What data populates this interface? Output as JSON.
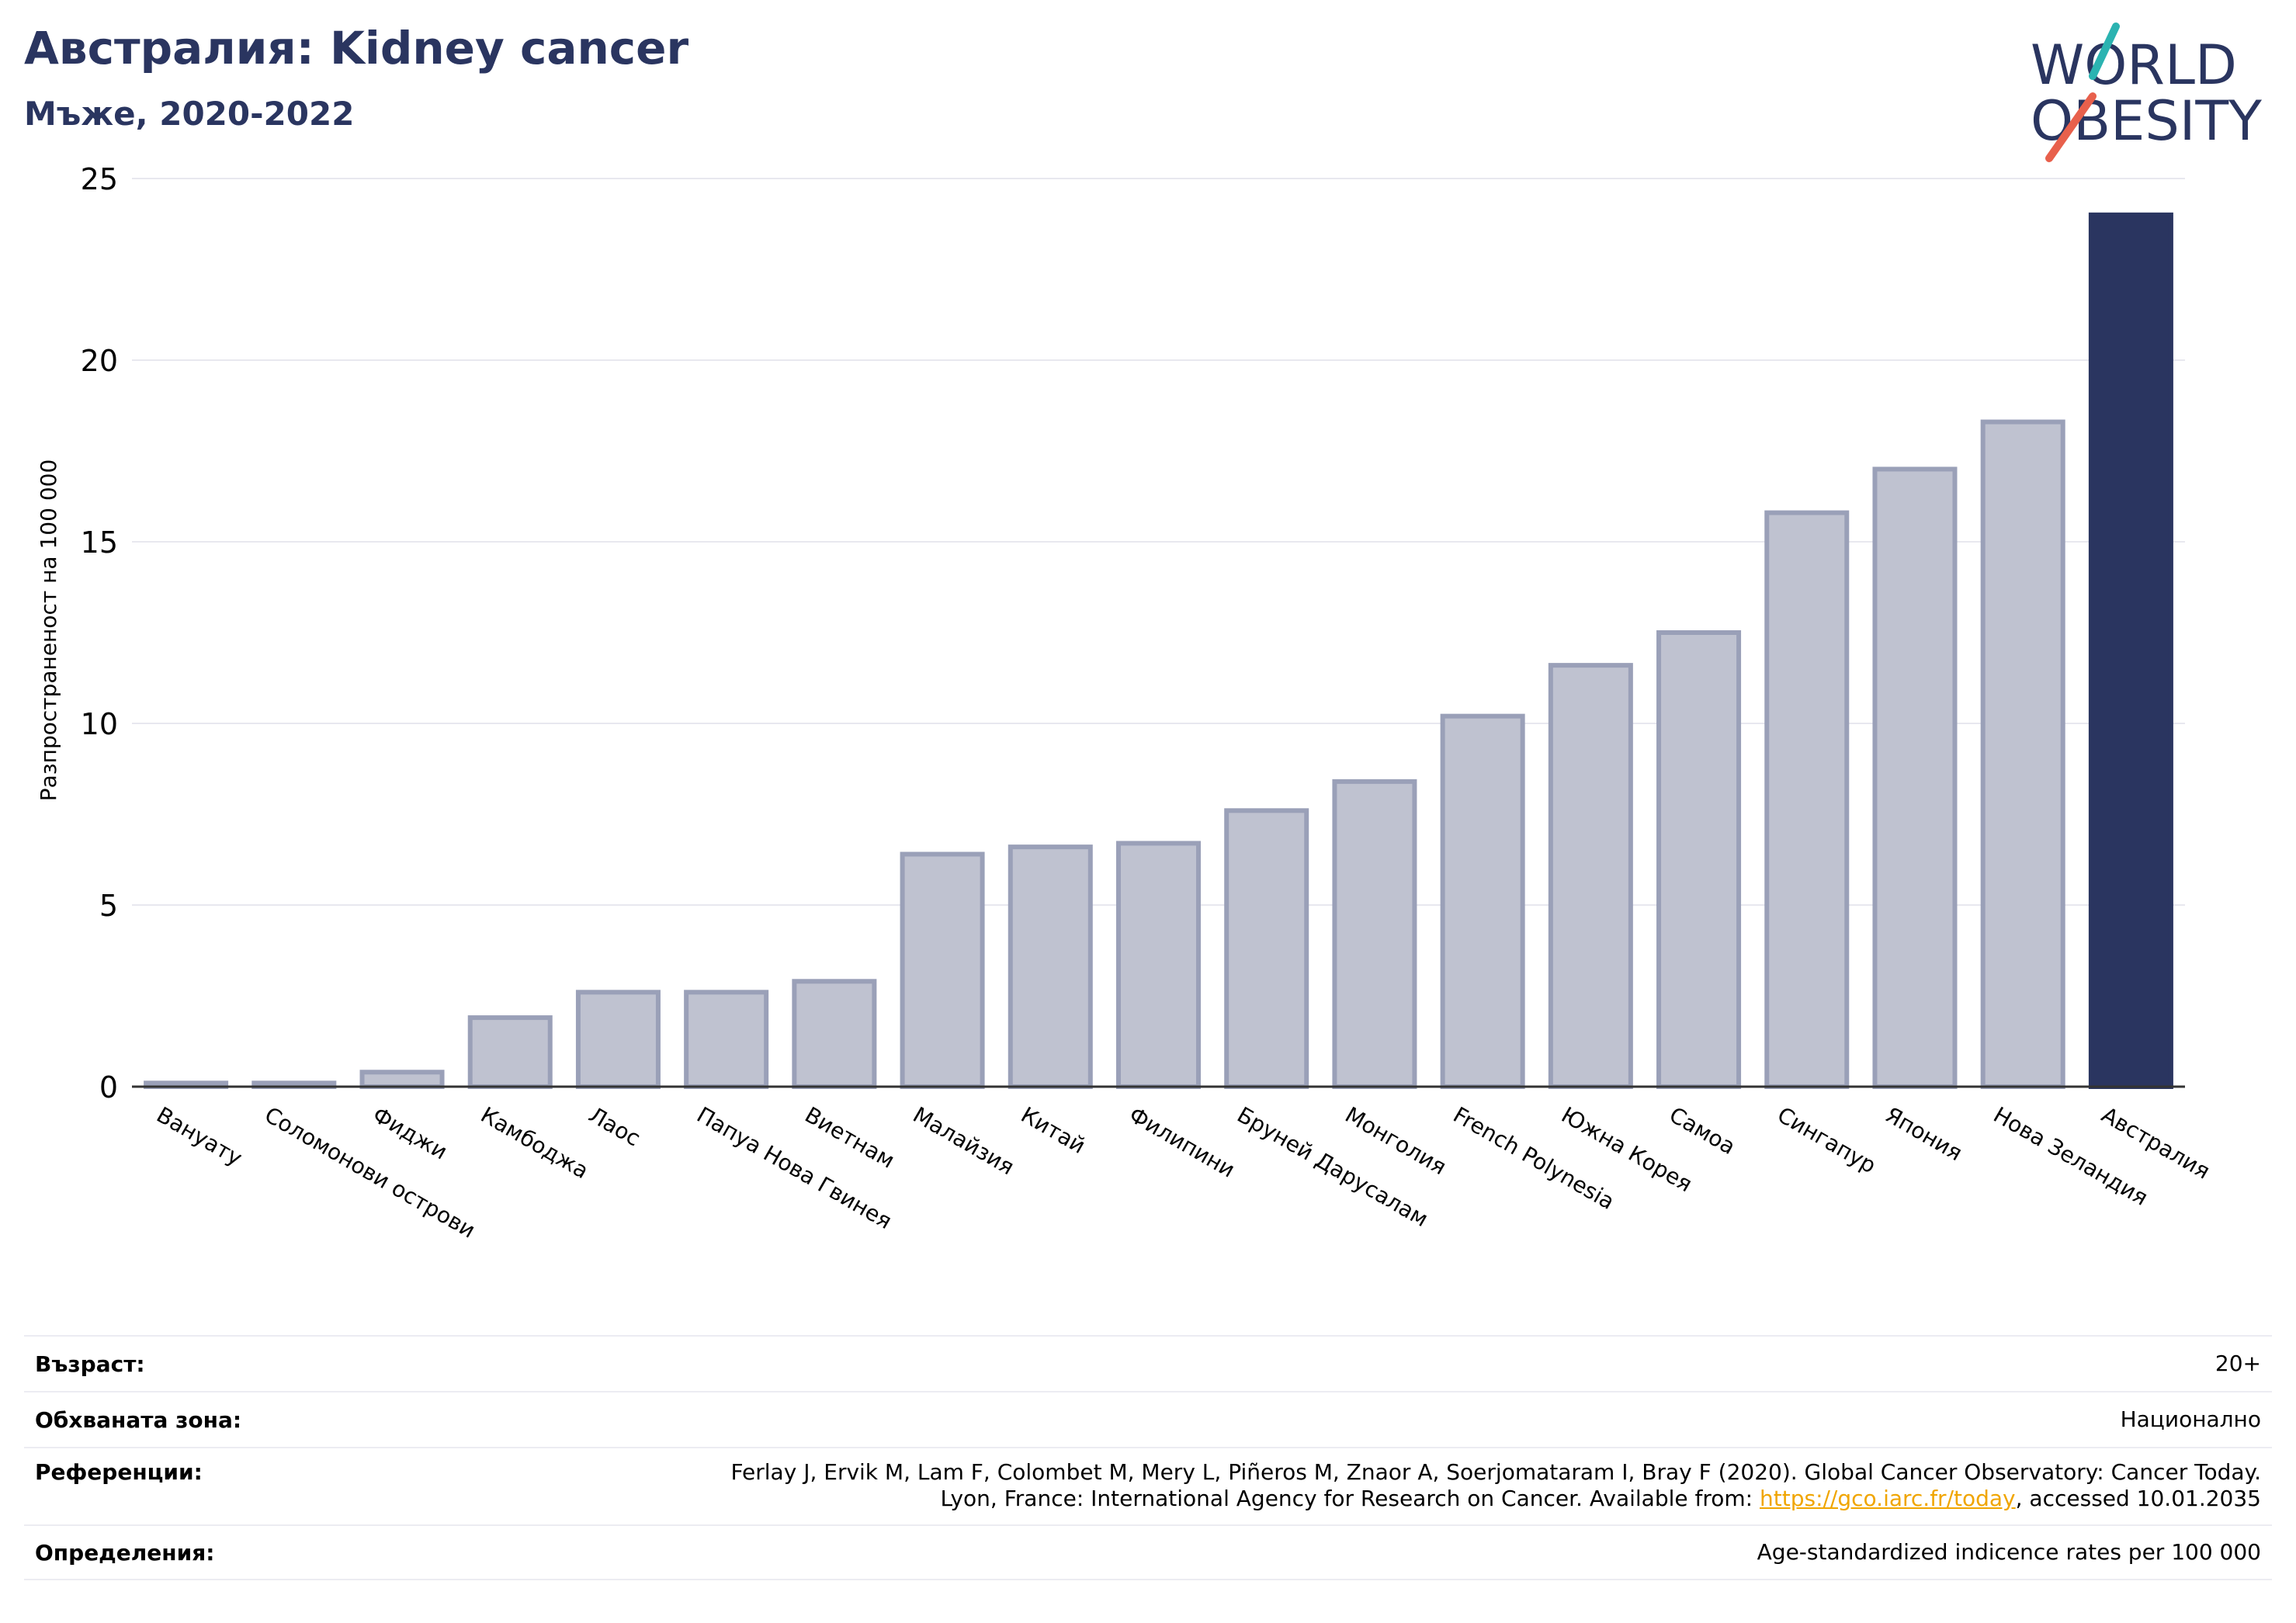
{
  "header": {
    "title": "Австралия: Kidney cancer",
    "subtitle": "Мъже, 2020-2022"
  },
  "logo": {
    "line1": "WORLD",
    "line2": "OBESITY",
    "colors": {
      "text": "#2a3560",
      "slash_top": "#2bb3b1",
      "slash_bottom": "#e8604c"
    }
  },
  "chart_data": {
    "type": "bar",
    "ylabel": "Разпространеност  на 100 000",
    "xlabel": "",
    "ylim": [
      0,
      25
    ],
    "yticks": [
      0,
      5,
      10,
      15,
      20,
      25
    ],
    "grid": true,
    "categories": [
      "Вануату",
      "Соломонови острови",
      "Фиджи",
      "Камбоджа",
      "Лаос",
      "Папуа Нова Гвинея",
      "Виетнам",
      "Малайзия",
      "Китай",
      "Филипини",
      "Бруней Дарусалам",
      "Монголия",
      "French Polynesia",
      "Южна Корея",
      "Самоа",
      "Сингапур",
      "Япония",
      "Нова Зеландия",
      "Австралия"
    ],
    "values": [
      0.1,
      0.1,
      0.4,
      1.9,
      2.6,
      2.6,
      2.9,
      6.4,
      6.6,
      6.7,
      7.6,
      8.4,
      10.2,
      11.6,
      12.5,
      15.8,
      17.0,
      18.3,
      24.0
    ],
    "highlight": "Австралия",
    "colors": {
      "bar": "#bfc2d0",
      "bar_edge": "#9aa0b8",
      "highlight": "#2a3560",
      "grid": "#e8e8ef",
      "axis": "#333333"
    }
  },
  "info": {
    "age_label": "Възраст:",
    "age_value": "20+",
    "area_label": "Обхваната зона:",
    "area_value": "Национално",
    "ref_label": "Референции:",
    "ref_line1": "Ferlay J, Ervik M, Lam F, Colombet M, Mery L, Piñeros M, Znaor A, Soerjomataram I, Bray F (2020). Global Cancer Observatory: Cancer Today.",
    "ref_line2_prefix": "Lyon, France: International Agency for Research on Cancer. Available from: ",
    "ref_link": "https://gco.iarc.fr/today",
    "ref_line2_suffix": ", accessed 10.01.2035",
    "def_label": "Определения:",
    "def_value": "Age-standardized indicence rates per 100 000"
  }
}
